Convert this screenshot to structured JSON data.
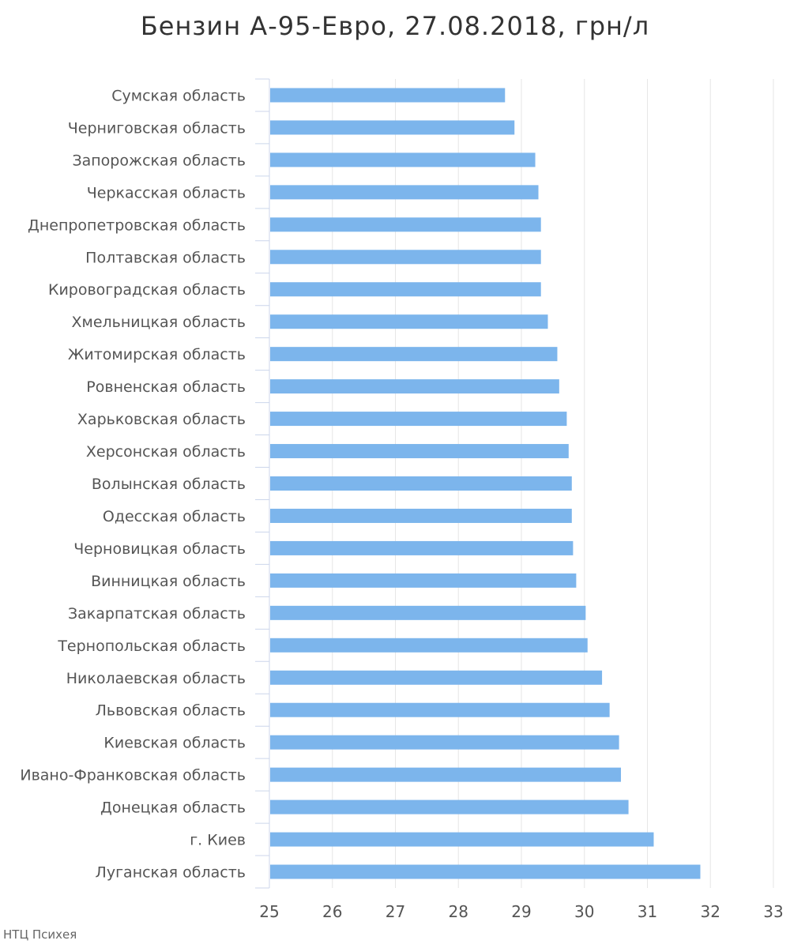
{
  "chart_data": {
    "type": "bar",
    "orientation": "horizontal",
    "title": "Бензин А-95-Евро, 27.08.2018, грн/л",
    "categories": [
      "Сумская область",
      "Черниговская область",
      "Запорожская область",
      "Черкасская область",
      "Днепропетровская область",
      "Полтавская область",
      "Кировоградская область",
      "Хмельницкая область",
      "Житомирская область",
      "Ровненская область",
      "Харьковская область",
      "Херсонская область",
      "Волынская область",
      "Одесская область",
      "Черновицкая область",
      "Винницкая область",
      "Закарпатская область",
      "Тернопольская область",
      "Николаевская область",
      "Львовская область",
      "Киевская область",
      "Ивано-Франковская область",
      "Донецкая область",
      "г. Киев",
      "Луганская область"
    ],
    "values": [
      28.74,
      28.89,
      29.22,
      29.27,
      29.31,
      29.31,
      29.31,
      29.42,
      29.57,
      29.6,
      29.72,
      29.75,
      29.8,
      29.8,
      29.82,
      29.87,
      30.02,
      30.05,
      30.28,
      30.4,
      30.55,
      30.58,
      30.7,
      31.1,
      31.84
    ],
    "xlim": [
      25,
      33
    ],
    "ticks": [
      "25",
      "26",
      "27",
      "28",
      "29",
      "30",
      "31",
      "32",
      "33"
    ],
    "grid": true,
    "bar_color": "#7cb5ec",
    "grid_color": "#e6e6e6",
    "axis_color": "#ccd6eb"
  },
  "credit": "НТЦ Психея"
}
